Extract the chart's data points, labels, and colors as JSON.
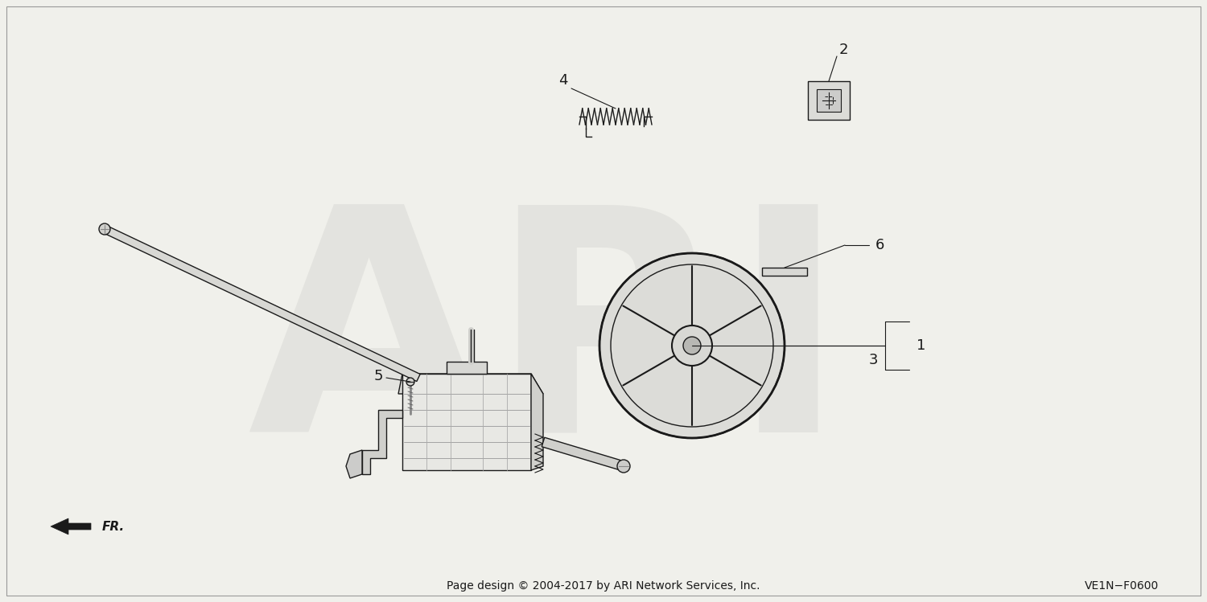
{
  "bg_color": "#f0f0eb",
  "footer_text": "Page design © 2004-2017 by ARI Network Services, Inc.",
  "part_code": "VE1N−F0600",
  "watermark": "ARI",
  "fr_label": "FR.",
  "line_color": "#1a1a1a",
  "light_color": "#666666",
  "fill_light": "#e2e2de",
  "fill_mid": "#d0d0cc",
  "fill_dark": "#b8b8b4"
}
